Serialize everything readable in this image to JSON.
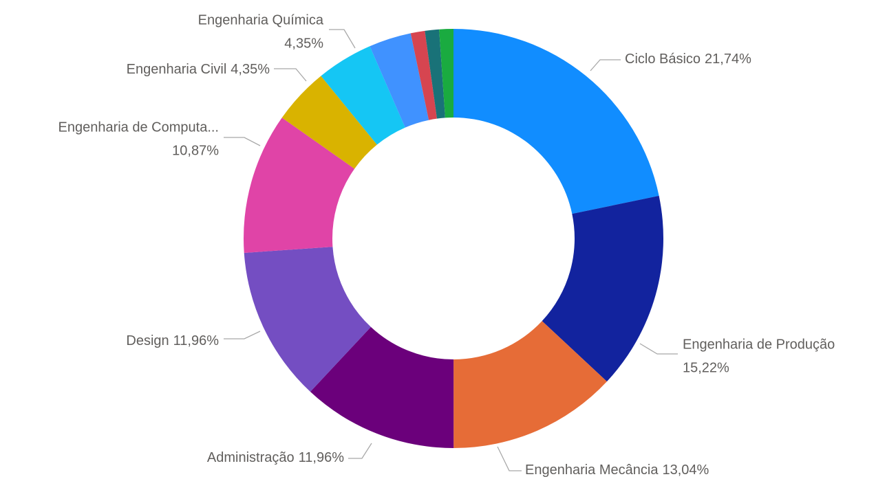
{
  "chart_data": {
    "type": "donut",
    "categories": [
      "Ciclo Básico",
      "Engenharia de Produção",
      "Engenharia Mecância",
      "Administração",
      "Design",
      "Engenharia de Computa...",
      "Engenharia Civil",
      "Engenharia Química",
      null,
      null,
      null,
      null
    ],
    "values": [
      21.74,
      15.22,
      13.04,
      11.96,
      11.96,
      10.87,
      4.35,
      4.35,
      3.26,
      1.09,
      1.09,
      1.09
    ],
    "value_labels": [
      "21,74%",
      "15,22%",
      "13,04%",
      "11,96%",
      "11,96%",
      "10,87%",
      "4,35%",
      "4,35%",
      null,
      null,
      null,
      null
    ],
    "colors": [
      "#118DFF",
      "#12239E",
      "#E66C37",
      "#6B007B",
      "#744EC2",
      "#E044A7",
      "#D9B300",
      "#15C6F4",
      "#4092FF",
      "#D64550",
      "#197278",
      "#1AAB40"
    ]
  }
}
